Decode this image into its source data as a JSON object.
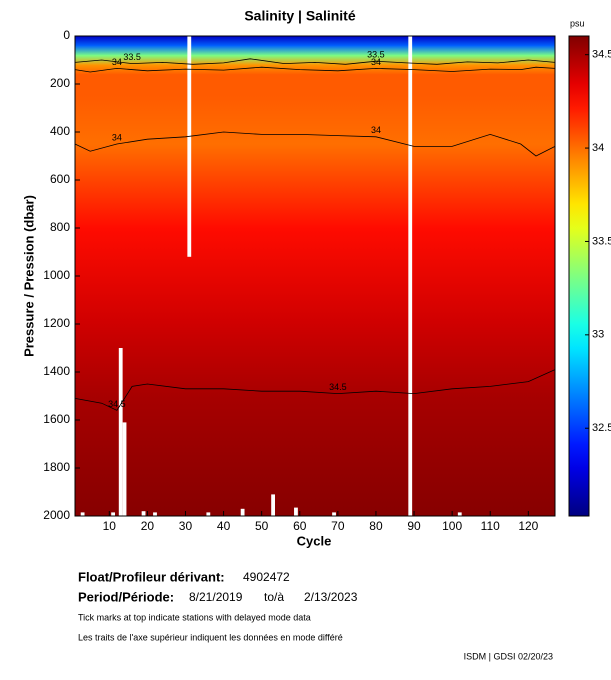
{
  "chart_data": {
    "type": "section",
    "title": "Salinity | Salinité",
    "xlabel": "Cycle",
    "ylabel": "Pressure / Pression (dbar)",
    "xlim": [
      1,
      127
    ],
    "xticks": [
      10,
      20,
      30,
      40,
      50,
      60,
      70,
      80,
      90,
      100,
      110,
      120
    ],
    "ylim": [
      2000,
      0
    ],
    "yticks": [
      0,
      200,
      400,
      600,
      800,
      1000,
      1200,
      1400,
      1600,
      1800,
      2000
    ],
    "colorbar": {
      "label": "psu",
      "clim": [
        32.03,
        34.6
      ],
      "ticks": [
        32.5,
        33,
        33.5,
        34,
        34.5
      ],
      "colormap": "jet"
    },
    "profile": {
      "pressure": [
        0,
        40,
        80,
        120,
        160,
        250,
        450,
        800,
        1200,
        1500,
        1800,
        2000
      ],
      "values": [
        32.2,
        32.6,
        33.3,
        33.9,
        34.05,
        34.05,
        34.0,
        34.25,
        34.4,
        34.5,
        34.55,
        34.58
      ]
    },
    "contours": [
      {
        "level": 33.5,
        "x": [
          1,
          8,
          16,
          24,
          32,
          40,
          47,
          56,
          64,
          72,
          80,
          88,
          96,
          104,
          112,
          120,
          127
        ],
        "y": [
          110,
          100,
          115,
          110,
          118,
          112,
          95,
          115,
          110,
          118,
          105,
          112,
          118,
          108,
          112,
          100,
          110
        ]
      },
      {
        "level": 34,
        "x": [
          1,
          5,
          12,
          20,
          30,
          40,
          50,
          60,
          70,
          80,
          90,
          100,
          110,
          118,
          122,
          127
        ],
        "y": [
          140,
          150,
          135,
          145,
          138,
          142,
          130,
          140,
          145,
          135,
          140,
          148,
          138,
          140,
          130,
          135
        ]
      },
      {
        "level": 34,
        "x": [
          1,
          5,
          12,
          20,
          30,
          40,
          50,
          60,
          70,
          80,
          90,
          100,
          110,
          118,
          122,
          127
        ],
        "y": [
          450,
          480,
          450,
          430,
          420,
          400,
          410,
          410,
          415,
          420,
          460,
          460,
          410,
          450,
          500,
          460
        ]
      },
      {
        "level": 34.5,
        "x": [
          1,
          8,
          12,
          16,
          20,
          30,
          40,
          50,
          60,
          70,
          80,
          90,
          100,
          110,
          120,
          127
        ],
        "y": [
          1510,
          1530,
          1560,
          1460,
          1450,
          1470,
          1470,
          1480,
          1480,
          1490,
          1480,
          1490,
          1470,
          1460,
          1440,
          1390
        ]
      }
    ],
    "gaps": [
      {
        "cycle": 31,
        "from": 0,
        "to": 920
      },
      {
        "cycle": 89,
        "from": 0,
        "to": 2000
      },
      {
        "cycle": 13,
        "from": 1300,
        "to": 2000
      },
      {
        "cycle": 14,
        "from": 1610,
        "to": 2000
      },
      {
        "cycle": 3,
        "from": 1985,
        "to": 2000
      },
      {
        "cycle": 11,
        "from": 1985,
        "to": 2000
      },
      {
        "cycle": 19,
        "from": 1980,
        "to": 2000
      },
      {
        "cycle": 22,
        "from": 1985,
        "to": 2000
      },
      {
        "cycle": 36,
        "from": 1985,
        "to": 2000
      },
      {
        "cycle": 45,
        "from": 1970,
        "to": 2000
      },
      {
        "cycle": 53,
        "from": 1910,
        "to": 2000
      },
      {
        "cycle": 59,
        "from": 1965,
        "to": 2000
      },
      {
        "cycle": 69,
        "from": 1985,
        "to": 2000
      },
      {
        "cycle": 102,
        "from": 1985,
        "to": 2000
      }
    ]
  },
  "info": {
    "float_label": "Float/Profileur dérivant:",
    "float_id": "4902472",
    "period_label": "Period/Période:",
    "start": "8/21/2019",
    "to": "to/à",
    "end": "2/13/2023",
    "note_en": "Tick marks at top indicate stations with delayed mode data",
    "note_fr": "Les traits de l'axe supérieur indiquent les données en mode différé",
    "credit": "ISDM | GDSI 02/20/23"
  }
}
